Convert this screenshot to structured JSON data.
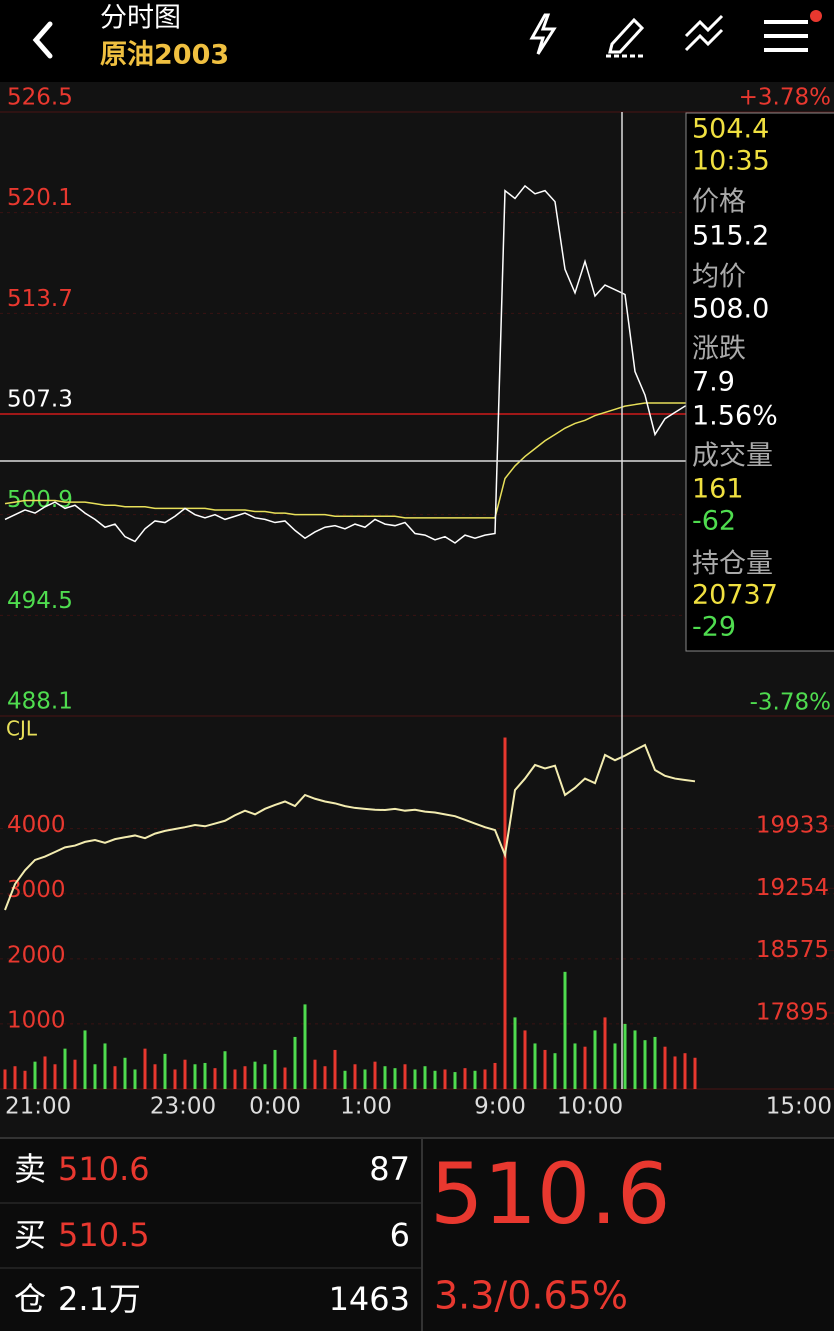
{
  "header": {
    "title": "分时图",
    "subtitle": "原油2003"
  },
  "price_chart": {
    "ylim": [
      488.1,
      526.5
    ],
    "yticks": [
      526.5,
      520.1,
      513.7,
      507.3,
      500.9,
      494.5,
      488.1
    ],
    "pct_labels": [
      "+3.78%",
      "-3.78%"
    ],
    "x_labels": [
      "21:00",
      "23:00",
      "0:00",
      "1:00",
      "9:00",
      "10:00",
      "15:00"
    ],
    "price": [
      500.6,
      500.9,
      501.2,
      501.0,
      501.4,
      501.7,
      501.3,
      501.5,
      501.0,
      500.6,
      500.1,
      500.3,
      499.5,
      499.2,
      500.0,
      500.5,
      500.4,
      500.8,
      501.3,
      500.9,
      500.7,
      500.9,
      500.6,
      500.8,
      501.0,
      500.7,
      500.6,
      500.4,
      500.5,
      499.9,
      499.4,
      499.8,
      500.1,
      500.2,
      500.0,
      500.3,
      500.1,
      500.6,
      500.3,
      500.2,
      500.4,
      499.7,
      499.6,
      499.3,
      499.5,
      499.1,
      499.6,
      499.4,
      499.6,
      499.7,
      521.5,
      521.0,
      521.8,
      521.3,
      521.5,
      520.8,
      516.5,
      515.0,
      517.0,
      514.8,
      515.5,
      515.2,
      514.9,
      510.0,
      508.5,
      506.0,
      507.0,
      507.4,
      507.8,
      508.0
    ],
    "avg": [
      501.6,
      501.7,
      501.8,
      501.8,
      501.8,
      501.8,
      501.7,
      501.7,
      501.7,
      501.6,
      501.5,
      501.5,
      501.4,
      501.4,
      501.4,
      501.3,
      501.3,
      501.3,
      501.3,
      501.3,
      501.3,
      501.2,
      501.2,
      501.2,
      501.2,
      501.1,
      501.1,
      501.0,
      501.0,
      500.9,
      500.9,
      500.9,
      500.9,
      500.8,
      500.8,
      500.8,
      500.8,
      500.8,
      500.8,
      500.8,
      500.7,
      500.7,
      500.7,
      500.7,
      500.7,
      500.7,
      500.7,
      500.7,
      500.7,
      500.7,
      503.2,
      504.0,
      504.6,
      505.1,
      505.6,
      506.0,
      506.4,
      506.7,
      506.9,
      507.2,
      507.4,
      507.6,
      507.8,
      507.9,
      508.0,
      508.0,
      508.0,
      508.0,
      508.0,
      508.0
    ],
    "price_color": "#ffffff",
    "avg_color": "#e8e05a",
    "up_color": "#e8382f",
    "down_color": "#4fdc4f"
  },
  "tooltip": [
    504.4,
    "10:35",
    "价格",
    515.2,
    "均价",
    "508.0",
    "涨跌",
    7.9,
    "1.56%",
    "成交量",
    161,
    -62,
    "持仓量",
    20737,
    -29
  ],
  "volume_chart": {
    "label": "CJL",
    "ylim": [
      0,
      5700
    ],
    "yticks": [
      4000,
      3000,
      2000,
      1000
    ],
    "y2lim": [
      17067,
      21110
    ],
    "y2ticks": [
      19933,
      19254,
      18575,
      17895
    ],
    "volume": [
      300,
      350,
      280,
      420,
      500,
      380,
      620,
      450,
      900,
      380,
      700,
      350,
      480,
      300,
      620,
      380,
      540,
      300,
      450,
      380,
      400,
      320,
      580,
      300,
      350,
      420,
      380,
      600,
      330,
      800,
      1300,
      450,
      350,
      600,
      280,
      380,
      300,
      420,
      350,
      320,
      380,
      300,
      350,
      280,
      300,
      260,
      320,
      280,
      300,
      400,
      5400,
      1100,
      900,
      700,
      600,
      550,
      1800,
      700,
      650,
      900,
      1100,
      700,
      1000,
      900,
      750,
      800,
      650,
      500,
      550,
      480
    ],
    "open_interest": [
      19018,
      19300,
      19450,
      19563,
      19600,
      19650,
      19700,
      19720,
      19760,
      19780,
      19750,
      19790,
      19810,
      19830,
      19800,
      19850,
      19880,
      19900,
      19920,
      19944,
      19930,
      19960,
      19990,
      20050,
      20100,
      20060,
      20120,
      20162,
      20200,
      20150,
      20271,
      20230,
      20200,
      20180,
      20150,
      20130,
      20120,
      20110,
      20107,
      20120,
      20100,
      20110,
      20090,
      20080,
      20060,
      20040,
      20000,
      19960,
      19920,
      19889,
      19617,
      20325,
      20450,
      20598,
      20560,
      20590,
      20271,
      20350,
      20450,
      20400,
      20707,
      20650,
      20700,
      20760,
      20816,
      20543,
      20480,
      20450,
      20434,
      20420
    ],
    "line_color": "#f3ecb0"
  },
  "quote": {
    "sell_label": "卖",
    "sell_price": 510.6,
    "sell_qty": 87,
    "buy_label": "买",
    "buy_price": 510.5,
    "buy_qty": 6,
    "oi_label": "仓",
    "oi_value": "2.1万",
    "oi_change": 1463,
    "last": 510.6,
    "change": "3.3/0.65%"
  }
}
